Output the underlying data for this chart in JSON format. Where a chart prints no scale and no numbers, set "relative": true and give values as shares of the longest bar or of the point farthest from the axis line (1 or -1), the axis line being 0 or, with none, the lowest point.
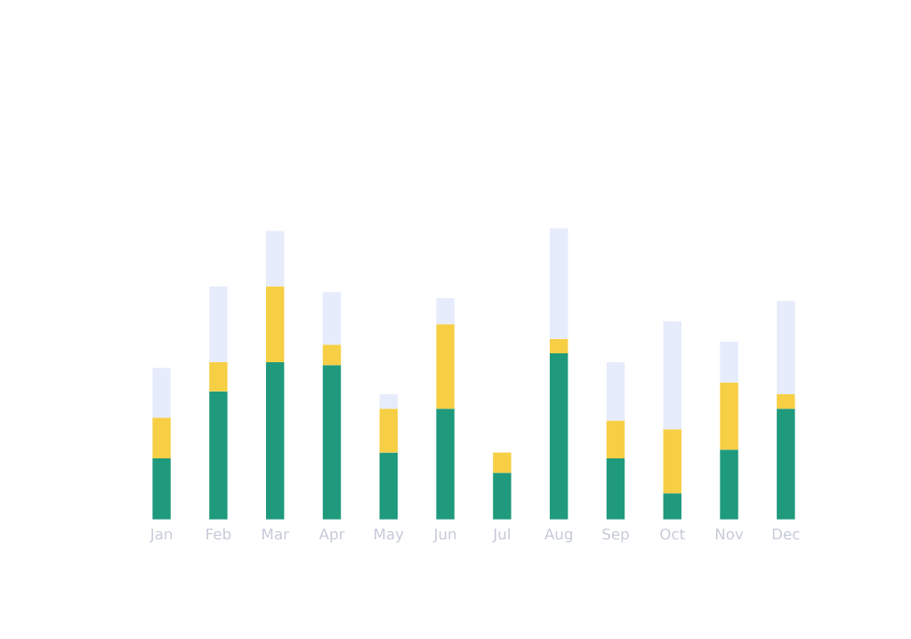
{
  "chart_data": {
    "type": "bar",
    "relative": true,
    "stacked": true,
    "categories": [
      "Jan",
      "Feb",
      "Mar",
      "Apr",
      "May",
      "Jun",
      "Jul",
      "Aug",
      "Sep",
      "Oct",
      "Nov",
      "Dec"
    ],
    "series": [
      {
        "color": "#1f9a7c",
        "values": [
          0.21,
          0.44,
          0.54,
          0.53,
          0.23,
          0.38,
          0.16,
          0.57,
          0.21,
          0.09,
          0.24,
          0.38
        ]
      },
      {
        "color": "#f7cf45",
        "values": [
          0.14,
          0.1,
          0.26,
          0.07,
          0.15,
          0.29,
          0.07,
          0.05,
          0.13,
          0.22,
          0.23,
          0.05
        ]
      },
      {
        "color": "#e6ecfb",
        "values": [
          0.17,
          0.26,
          0.19,
          0.18,
          0.05,
          0.09,
          0,
          0.38,
          0.2,
          0.37,
          0.14,
          0.32
        ]
      }
    ],
    "grid": false,
    "legend": false
  }
}
